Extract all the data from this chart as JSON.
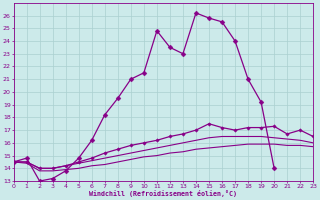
{
  "xlabel": "Windchill (Refroidissement éolien,°C)",
  "xlim": [
    0,
    23
  ],
  "ylim": [
    13,
    27
  ],
  "yticks": [
    13,
    14,
    15,
    16,
    17,
    18,
    19,
    20,
    21,
    22,
    23,
    24,
    25,
    26
  ],
  "xticks": [
    0,
    1,
    2,
    3,
    4,
    5,
    6,
    7,
    8,
    9,
    10,
    11,
    12,
    13,
    14,
    15,
    16,
    17,
    18,
    19,
    20,
    21,
    22,
    23
  ],
  "background_color": "#cceaea",
  "grid_color": "#aad0d0",
  "line_color": "#880088",
  "curve1_x": [
    0,
    1,
    2,
    3,
    4,
    5,
    6,
    7,
    8,
    9,
    10,
    11,
    12,
    13,
    14,
    15,
    16,
    17,
    18,
    19,
    20
  ],
  "curve1_y": [
    14.5,
    14.8,
    13.0,
    13.2,
    13.8,
    14.8,
    16.2,
    18.2,
    19.5,
    21.0,
    21.5,
    24.8,
    23.5,
    23.0,
    26.2,
    25.8,
    25.5,
    24.0,
    21.0,
    19.2,
    14.0
  ],
  "curve2_x": [
    0,
    1,
    2,
    3,
    4,
    5,
    6,
    7,
    8,
    9,
    10,
    11,
    12,
    13,
    14,
    15,
    16,
    17,
    18,
    19,
    20,
    21,
    22,
    23
  ],
  "curve2_y": [
    14.5,
    14.5,
    14.0,
    14.0,
    14.2,
    14.5,
    14.8,
    15.2,
    15.5,
    15.8,
    16.0,
    16.2,
    16.5,
    16.7,
    17.0,
    17.5,
    17.2,
    17.0,
    17.2,
    17.2,
    17.3,
    16.7,
    17.0,
    16.5
  ],
  "curve3_x": [
    0,
    1,
    2,
    3,
    4,
    5,
    6,
    7,
    8,
    9,
    10,
    11,
    12,
    13,
    14,
    15,
    16,
    17,
    18,
    19,
    20,
    21,
    22,
    23
  ],
  "curve3_y": [
    14.5,
    14.5,
    14.0,
    14.0,
    14.2,
    14.4,
    14.6,
    14.8,
    15.0,
    15.2,
    15.4,
    15.6,
    15.8,
    16.0,
    16.2,
    16.4,
    16.5,
    16.5,
    16.5,
    16.5,
    16.4,
    16.3,
    16.2,
    16.0
  ],
  "curve4_x": [
    0,
    1,
    2,
    3,
    4,
    5,
    6,
    7,
    8,
    9,
    10,
    11,
    12,
    13,
    14,
    15,
    16,
    17,
    18,
    19,
    20,
    21,
    22,
    23
  ],
  "curve4_y": [
    14.5,
    14.4,
    13.8,
    13.8,
    13.9,
    14.0,
    14.2,
    14.3,
    14.5,
    14.7,
    14.9,
    15.0,
    15.2,
    15.3,
    15.5,
    15.6,
    15.7,
    15.8,
    15.9,
    15.9,
    15.9,
    15.8,
    15.8,
    15.7
  ]
}
